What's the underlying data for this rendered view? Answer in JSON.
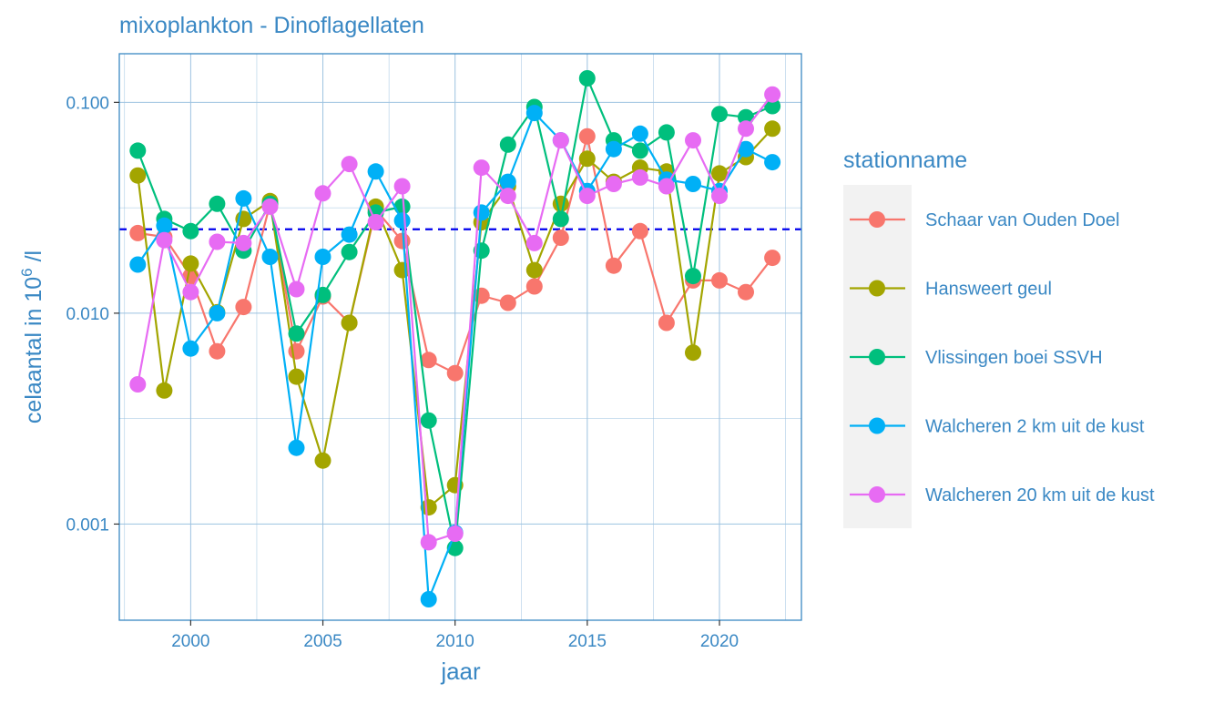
{
  "chart_data": {
    "type": "line",
    "title": "mixoplankton - Dinoflagellaten",
    "xlabel": "jaar",
    "ylabel_parts": {
      "prefix": "celaantal in  10",
      "superscript": "6",
      "suffix": " /l"
    },
    "y_scale": "log10",
    "ylim": [
      0.00035,
      0.17
    ],
    "xlim": [
      1997.3,
      2023.1
    ],
    "x_ticks": [
      2000,
      2005,
      2010,
      2015,
      2020
    ],
    "x_tick_labels": [
      "2000",
      "2005",
      "2010",
      "2015",
      "2020"
    ],
    "y_ticks": [
      0.001,
      0.01,
      0.1
    ],
    "y_tick_labels": [
      "0.001",
      "0.010",
      "0.100"
    ],
    "grid": true,
    "reference_line": {
      "y": 0.025,
      "color": "#0000ee",
      "style": "dashed"
    },
    "legend": {
      "title": "stationname",
      "position": "right"
    },
    "x": [
      1998,
      1999,
      2000,
      2001,
      2002,
      2003,
      2004,
      2005,
      2006,
      2007,
      2008,
      2009,
      2010,
      2011,
      2012,
      2013,
      2014,
      2015,
      2016,
      2017,
      2018,
      2019,
      2020,
      2021,
      2022
    ],
    "series": [
      {
        "name": "Schaar van Ouden Doel",
        "color": "#f8766d",
        "values": [
          0.024,
          0.023,
          0.015,
          0.0066,
          0.0107,
          0.033,
          0.0066,
          0.012,
          0.009,
          0.031,
          0.022,
          0.006,
          0.0052,
          0.0121,
          0.0112,
          0.0134,
          0.0228,
          0.069,
          0.0168,
          0.0245,
          0.009,
          0.0143,
          0.0143,
          0.0126,
          0.0183
        ]
      },
      {
        "name": "Hansweert geul",
        "color": "#a3a500",
        "values": [
          0.045,
          0.0043,
          0.0172,
          0.0101,
          0.028,
          0.034,
          0.005,
          0.002,
          0.009,
          0.032,
          0.016,
          0.0012,
          0.00153,
          0.027,
          0.04,
          0.016,
          0.033,
          0.054,
          0.042,
          0.049,
          0.047,
          0.0065,
          0.046,
          0.055,
          0.075
        ]
      },
      {
        "name": "Vlissingen boei SSVH",
        "color": "#00bf7d",
        "values": [
          0.059,
          0.028,
          0.0245,
          0.033,
          0.0198,
          0.033,
          0.008,
          0.0122,
          0.0195,
          0.03,
          0.032,
          0.0031,
          0.00077,
          0.0198,
          0.063,
          0.095,
          0.028,
          0.13,
          0.066,
          0.059,
          0.072,
          0.015,
          0.088,
          0.085,
          0.096
        ]
      },
      {
        "name": "Walcheren 2 km uit de kust",
        "color": "#00b0f6",
        "values": [
          0.017,
          0.026,
          0.0068,
          0.01,
          0.035,
          0.0185,
          0.0023,
          0.0185,
          0.0236,
          0.047,
          0.0275,
          0.00044,
          0.00091,
          0.03,
          0.042,
          0.089,
          0.066,
          0.038,
          0.06,
          0.071,
          0.043,
          0.041,
          0.038,
          0.06,
          0.052
        ]
      },
      {
        "name": "Walcheren 20 km uit de kust",
        "color": "#e76bf3",
        "values": [
          0.0046,
          0.0222,
          0.0126,
          0.0218,
          0.0215,
          0.032,
          0.013,
          0.037,
          0.051,
          0.027,
          0.04,
          0.00082,
          0.0009,
          0.049,
          0.036,
          0.0215,
          0.066,
          0.036,
          0.041,
          0.044,
          0.04,
          0.066,
          0.036,
          0.075,
          0.109
        ]
      }
    ]
  }
}
